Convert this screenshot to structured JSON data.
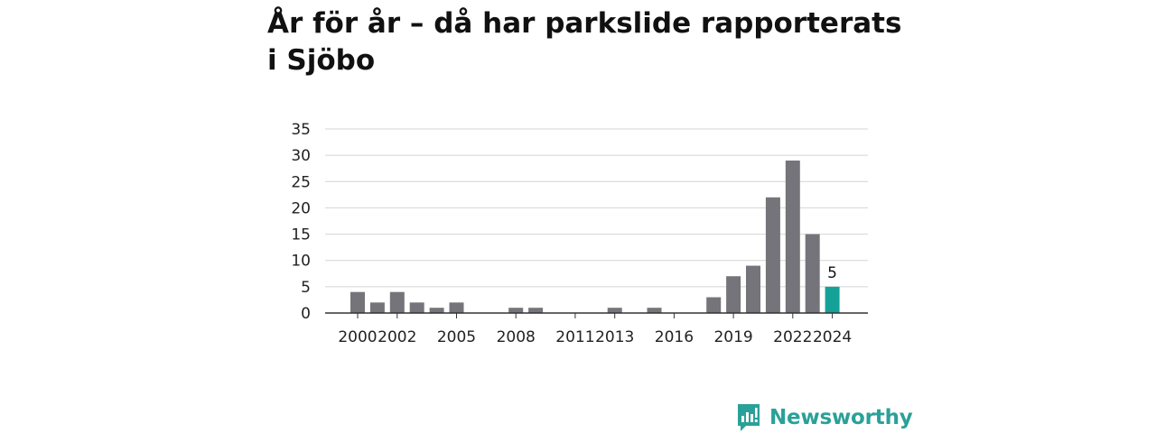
{
  "chart_data": {
    "type": "bar",
    "title": "År för år – då har parkslide rapporterats i Sjöbo",
    "xlabel": "",
    "ylabel": "",
    "ylim": [
      0,
      35
    ],
    "yticks": [
      "0",
      "5",
      "10",
      "15",
      "20",
      "25",
      "30",
      "35"
    ],
    "grid": true,
    "categories": [
      "2000",
      "2001",
      "2002",
      "2003",
      "2004",
      "2005",
      "2006",
      "2007",
      "2008",
      "2009",
      "2010",
      "2011",
      "2012",
      "2013",
      "2014",
      "2015",
      "2016",
      "2017",
      "2018",
      "2019",
      "2020",
      "2021",
      "2022",
      "2023",
      "2024"
    ],
    "x_tick_labels": [
      "2000",
      "2002",
      "2005",
      "2008",
      "2011",
      "2013",
      "2016",
      "2019",
      "2022",
      "2024"
    ],
    "values": [
      4,
      2,
      4,
      2,
      1,
      2,
      0,
      0,
      1,
      1,
      0,
      0,
      0,
      1,
      0,
      1,
      0,
      0,
      3,
      7,
      9,
      22,
      29,
      15,
      5
    ],
    "highlight": {
      "category": "2024",
      "label": "5"
    },
    "colors": {
      "bar": "#75747a",
      "highlight": "#14a198",
      "grid": "#d4d4d4",
      "axis": "#333333"
    }
  },
  "brand": {
    "name": "Newsworthy",
    "icon": "newsworthy-logo-icon",
    "color": "#2aa198"
  }
}
